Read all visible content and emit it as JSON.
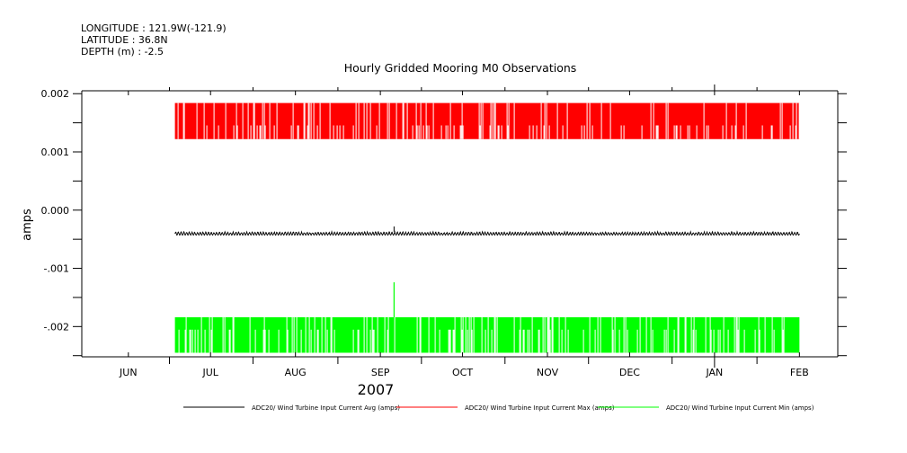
{
  "header": {
    "longitude": "LONGITUDE : 121.9W(-121.9)",
    "latitude": "LATITUDE : 36.8N",
    "depth": "DEPTH (m) : -2.5"
  },
  "chart_data": {
    "type": "line",
    "title": "Hourly Gridded Mooring M0 Observations",
    "xlabel": "2007",
    "ylabel": "amps",
    "x_range": [
      "2007-05-15",
      "2008-02-15"
    ],
    "x_ticks": [
      {
        "date": "2007-06-01",
        "label": "JUN"
      },
      {
        "date": "2007-07-01",
        "label": "JUL"
      },
      {
        "date": "2007-08-01",
        "label": "AUG"
      },
      {
        "date": "2007-09-01",
        "label": "SEP"
      },
      {
        "date": "2007-10-01",
        "label": "OCT"
      },
      {
        "date": "2007-11-01",
        "label": "NOV"
      },
      {
        "date": "2007-12-01",
        "label": "DEC"
      },
      {
        "date": "2008-01-01",
        "label": "JAN"
      },
      {
        "date": "2008-02-01",
        "label": "FEB"
      }
    ],
    "ylim": [
      -0.00252,
      0.00205
    ],
    "y_ticks": [
      0.002,
      0.001,
      0.0,
      -0.001,
      -0.002
    ],
    "y_tick_labels": [
      "0.002",
      "0.001",
      "0.000",
      "-.001",
      "-.002"
    ],
    "grid": false,
    "legend_position": "bottom",
    "series": [
      {
        "name": "ADC20/ Wind Turbine Input Current Avg (amps)",
        "color": "#000000",
        "start": "2007-06-18",
        "end": "2008-02-01",
        "typical_low": -0.00043,
        "typical_high": -0.00037,
        "spike": {
          "date": "2007-09-06",
          "value": -0.00028
        }
      },
      {
        "name": "ADC20/ Wind Turbine Input Current Max (amps)",
        "color": "#ff0000",
        "start": "2007-06-18",
        "end": "2008-02-01",
        "typical_low": 0.00122,
        "typical_high": 0.00184
      },
      {
        "name": "ADC20/ Wind Turbine Input Current Min (amps)",
        "color": "#00ff00",
        "start": "2007-06-18",
        "end": "2008-02-01",
        "typical_low": -0.00245,
        "typical_high": -0.00184,
        "spike": {
          "date": "2007-09-06",
          "value": -0.00124
        }
      }
    ]
  }
}
